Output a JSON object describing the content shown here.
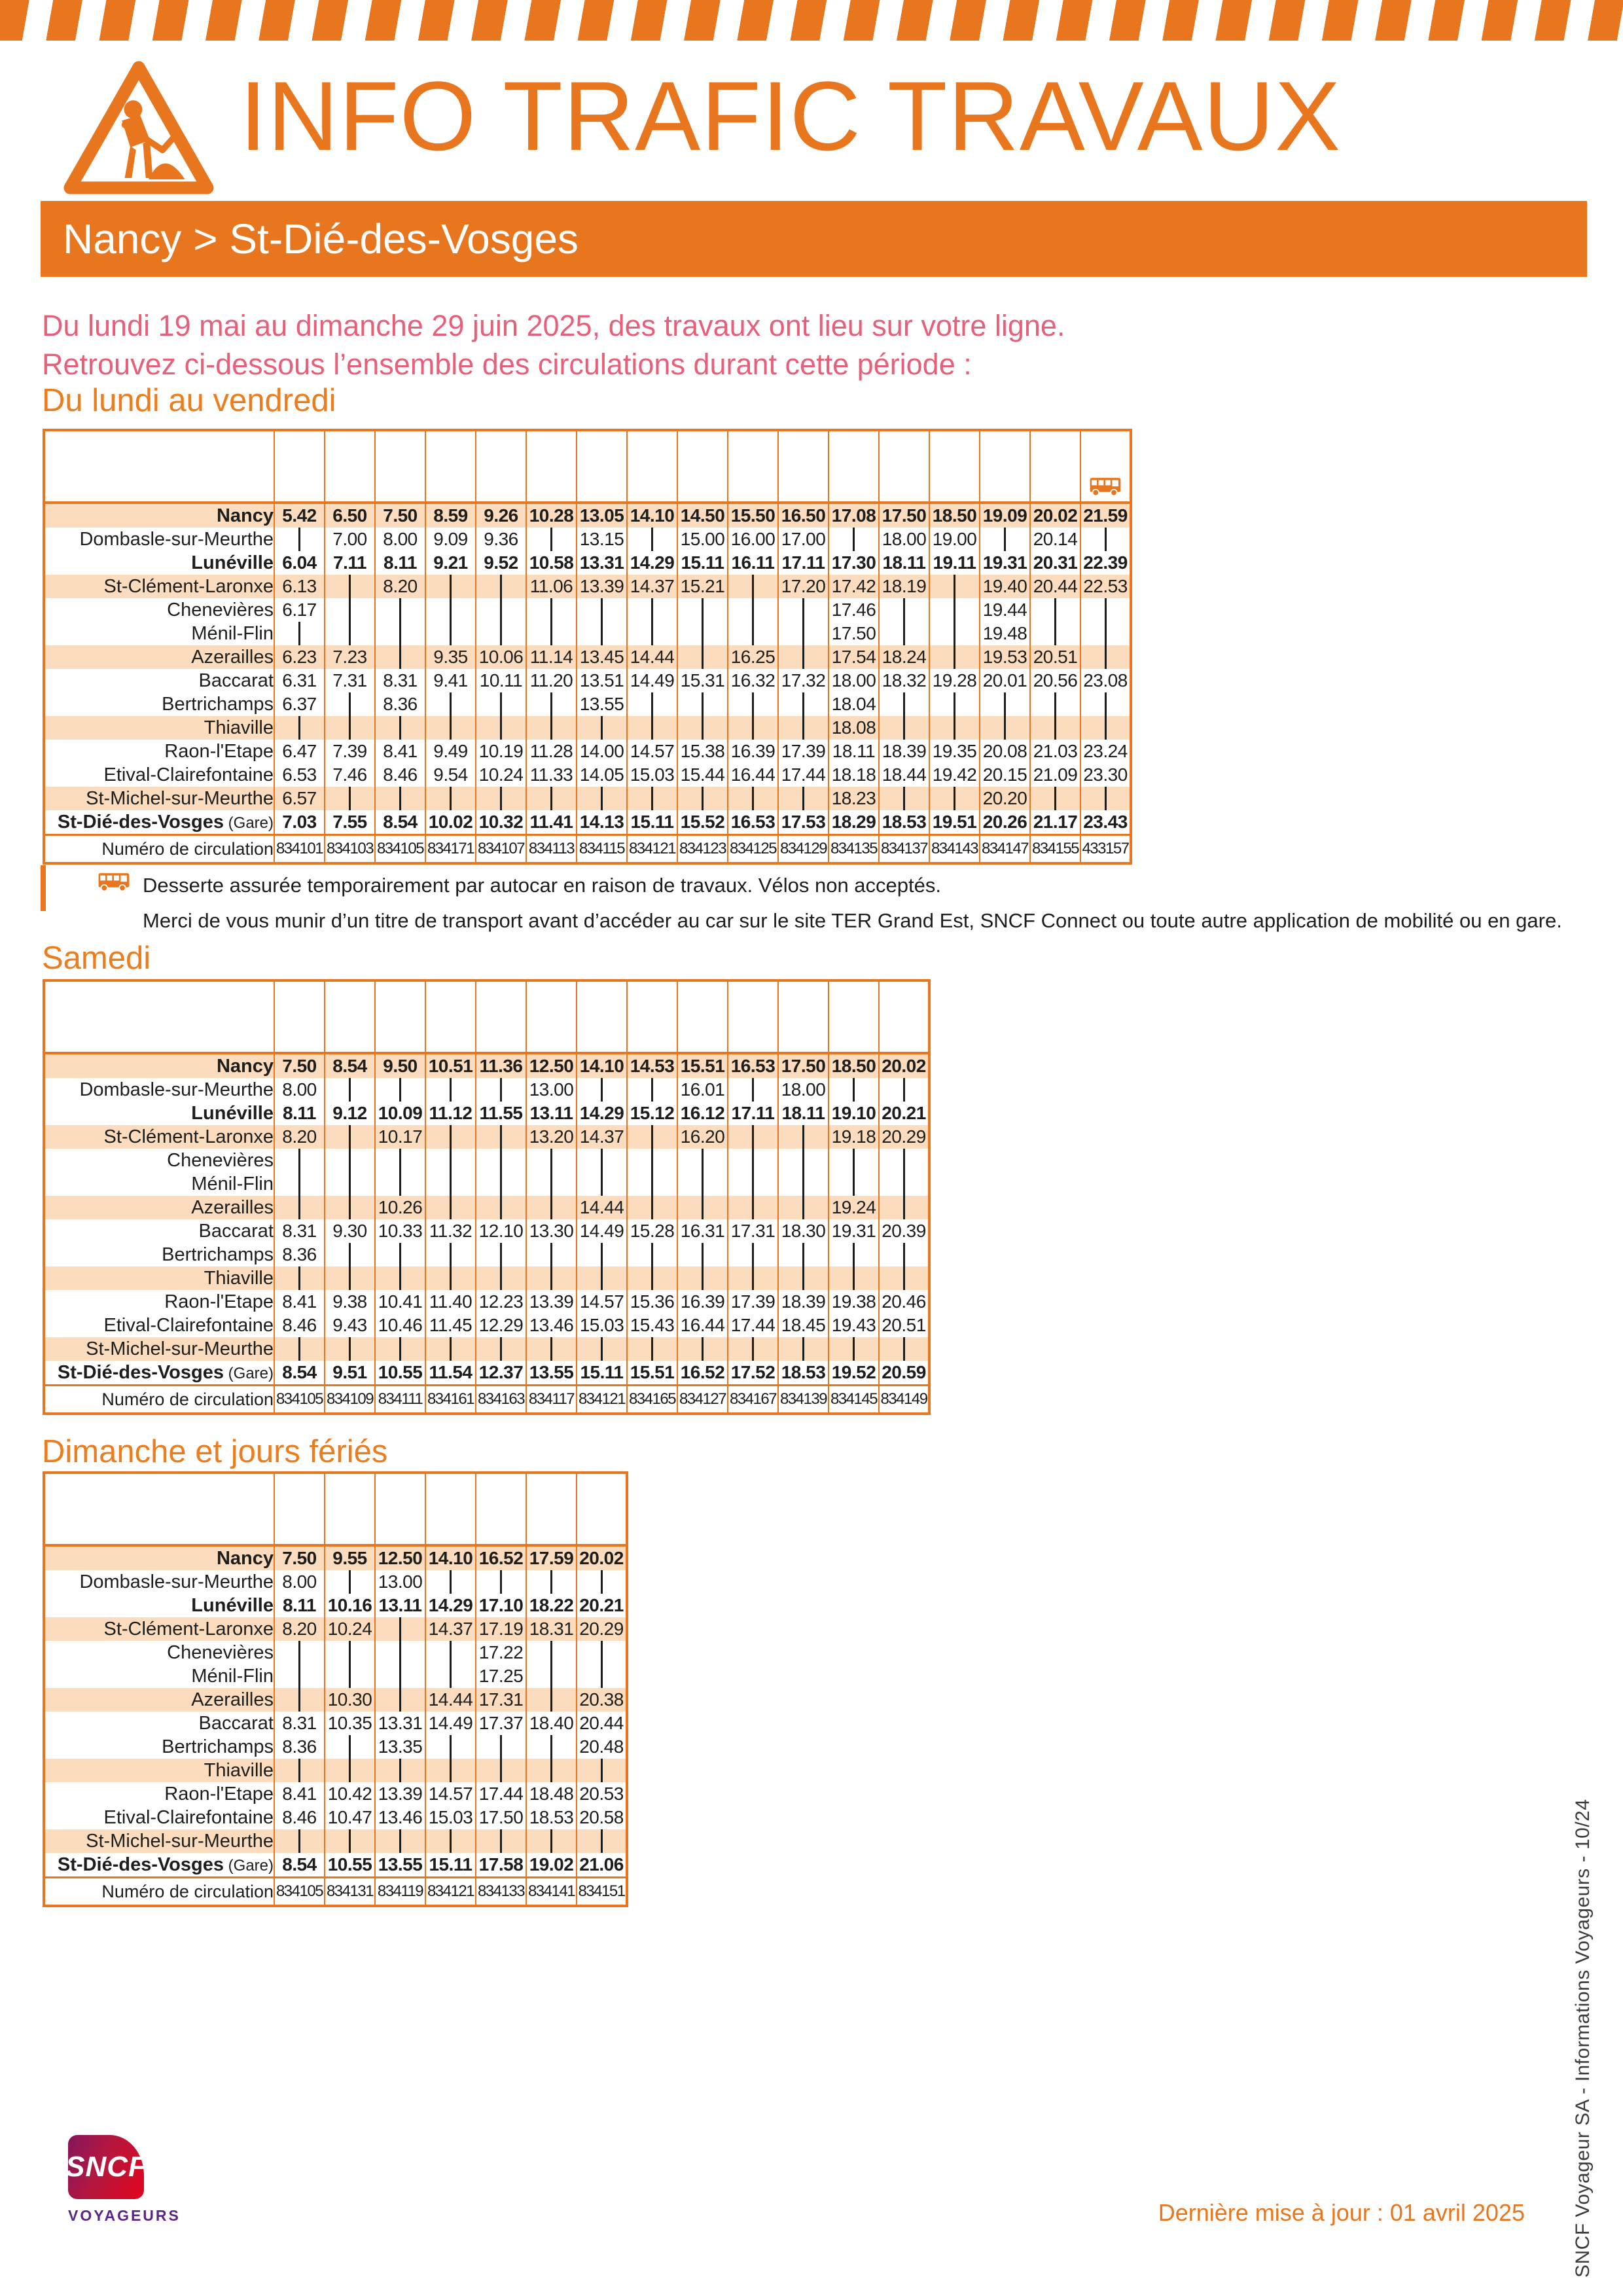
{
  "page": {
    "title": "INFO TRAFIC TRAVAUX",
    "route": "Nancy > St-Dié-des-Vosges",
    "intro_line1": "Du lundi 19 mai au dimanche 29 juin 2025, des travaux ont lieu sur votre ligne.",
    "intro_line2": "Retrouvez ci-dessous l’ensemble des circulations durant cette période :",
    "last_update": "Dernière mise à jour : 01 avril 2025",
    "side_note": "SNCF Voyageur SA - Informations Voyageurs - 10/24",
    "logo_brand": "SNCF",
    "logo_sub": "VOYAGEURS"
  },
  "colors": {
    "orange": "#E8761E",
    "row_fill": "#FBDCBF",
    "pink": "#E75F78",
    "ink": "#1D1D1B",
    "logo_purple": "#5C2483"
  },
  "legend": {
    "line1": "Desserte assurée temporairement par autocar en raison de travaux. Vélos non acceptés.",
    "line2": "Merci de vous munir d’un titre de transport avant d’accéder au car sur le site TER Grand Est, SNCF Connect ou toute autre application de mobilité ou en gare."
  },
  "circulation_label": "Numéro de circulation",
  "stations": [
    {
      "name": "Nancy",
      "bold": true,
      "shaded": true
    },
    {
      "name": "Dombasle-sur-Meurthe",
      "bold": false,
      "shaded": false
    },
    {
      "name": "Lunéville",
      "bold": true,
      "shaded": false
    },
    {
      "name": "St-Clément-Laronxe",
      "bold": false,
      "shaded": true
    },
    {
      "name": "Chenevières",
      "bold": false,
      "shaded": false
    },
    {
      "name": "Ménil-Flin",
      "bold": false,
      "shaded": false
    },
    {
      "name": "Azerailles",
      "bold": false,
      "shaded": true
    },
    {
      "name": "Baccarat",
      "bold": false,
      "shaded": false
    },
    {
      "name": "Bertrichamps",
      "bold": false,
      "shaded": false
    },
    {
      "name": "Thiaville",
      "bold": false,
      "shaded": true
    },
    {
      "name": "Raon-l'Etape",
      "bold": false,
      "shaded": false
    },
    {
      "name": "Etival-Clairefontaine",
      "bold": false,
      "shaded": false
    },
    {
      "name": "St-Michel-sur-Meurthe",
      "bold": false,
      "shaded": true
    },
    {
      "name": "St-Dié-des-Vosges",
      "suffix": "(Gare)",
      "bold": true,
      "shaded": false
    }
  ],
  "tables": [
    {
      "id": "weekday",
      "heading": "Du lundi au vendredi",
      "bus_cols": [
        16
      ],
      "rows": [
        [
          "5.42",
          "6.50",
          "7.50",
          "8.59",
          "9.26",
          "10.28",
          "13.05",
          "14.10",
          "14.50",
          "15.50",
          "16.50",
          "17.08",
          "17.50",
          "18.50",
          "19.09",
          "20.02",
          "21.59"
        ],
        [
          "|",
          "7.00",
          "8.00",
          "9.09",
          "9.36",
          "|",
          "13.15",
          "|",
          "15.00",
          "16.00",
          "17.00",
          "|",
          "18.00",
          "19.00",
          "|",
          "20.14",
          "|"
        ],
        [
          "6.04",
          "7.11",
          "8.11",
          "9.21",
          "9.52",
          "10.58",
          "13.31",
          "14.29",
          "15.11",
          "16.11",
          "17.11",
          "17.30",
          "18.11",
          "19.11",
          "19.31",
          "20.31",
          "22.39"
        ],
        [
          "6.13",
          "|",
          "8.20",
          "|",
          "|",
          "11.06",
          "13.39",
          "14.37",
          "15.21",
          "|",
          "17.20",
          "17.42",
          "18.19",
          "|",
          "19.40",
          "20.44",
          "22.53"
        ],
        [
          "6.17",
          "|",
          "|",
          "|",
          "|",
          "|",
          "|",
          "|",
          "|",
          "|",
          "|",
          "17.46",
          "|",
          "|",
          "19.44",
          "|",
          "|"
        ],
        [
          "|",
          "|",
          "|",
          "|",
          "|",
          "|",
          "|",
          "|",
          "|",
          "|",
          "|",
          "17.50",
          "|",
          "|",
          "19.48",
          "|",
          "|"
        ],
        [
          "6.23",
          "7.23",
          "|",
          "9.35",
          "10.06",
          "11.14",
          "13.45",
          "14.44",
          "|",
          "16.25",
          "|",
          "17.54",
          "18.24",
          "|",
          "19.53",
          "20.51",
          "|"
        ],
        [
          "6.31",
          "7.31",
          "8.31",
          "9.41",
          "10.11",
          "11.20",
          "13.51",
          "14.49",
          "15.31",
          "16.32",
          "17.32",
          "18.00",
          "18.32",
          "19.28",
          "20.01",
          "20.56",
          "23.08"
        ],
        [
          "6.37",
          "|",
          "8.36",
          "|",
          "|",
          "|",
          "13.55",
          "|",
          "|",
          "|",
          "|",
          "18.04",
          "|",
          "|",
          "|",
          "|",
          "|"
        ],
        [
          "|",
          "|",
          "|",
          "|",
          "|",
          "|",
          "|",
          "|",
          "|",
          "|",
          "|",
          "18.08",
          "|",
          "|",
          "|",
          "|",
          "|"
        ],
        [
          "6.47",
          "7.39",
          "8.41",
          "9.49",
          "10.19",
          "11.28",
          "14.00",
          "14.57",
          "15.38",
          "16.39",
          "17.39",
          "18.11",
          "18.39",
          "19.35",
          "20.08",
          "21.03",
          "23.24"
        ],
        [
          "6.53",
          "7.46",
          "8.46",
          "9.54",
          "10.24",
          "11.33",
          "14.05",
          "15.03",
          "15.44",
          "16.44",
          "17.44",
          "18.18",
          "18.44",
          "19.42",
          "20.15",
          "21.09",
          "23.30"
        ],
        [
          "6.57",
          "|",
          "|",
          "|",
          "|",
          "|",
          "|",
          "|",
          "|",
          "|",
          "|",
          "18.23",
          "|",
          "|",
          "20.20",
          "|",
          "|"
        ],
        [
          "7.03",
          "7.55",
          "8.54",
          "10.02",
          "10.32",
          "11.41",
          "14.13",
          "15.11",
          "15.52",
          "16.53",
          "17.53",
          "18.29",
          "18.53",
          "19.51",
          "20.26",
          "21.17",
          "23.43"
        ]
      ],
      "numbers": [
        "834101",
        "834103",
        "834105",
        "834171",
        "834107",
        "834113",
        "834115",
        "834121",
        "834123",
        "834125",
        "834129",
        "834135",
        "834137",
        "834143",
        "834147",
        "834155",
        "433157"
      ]
    },
    {
      "id": "saturday",
      "heading": "Samedi",
      "bus_cols": [],
      "rows": [
        [
          "7.50",
          "8.54",
          "9.50",
          "10.51",
          "11.36",
          "12.50",
          "14.10",
          "14.53",
          "15.51",
          "16.53",
          "17.50",
          "18.50",
          "20.02"
        ],
        [
          "8.00",
          "|",
          "|",
          "|",
          "|",
          "13.00",
          "|",
          "|",
          "16.01",
          "|",
          "18.00",
          "|",
          "|"
        ],
        [
          "8.11",
          "9.12",
          "10.09",
          "11.12",
          "11.55",
          "13.11",
          "14.29",
          "15.12",
          "16.12",
          "17.11",
          "18.11",
          "19.10",
          "20.21"
        ],
        [
          "8.20",
          "|",
          "10.17",
          "|",
          "|",
          "13.20",
          "14.37",
          "|",
          "16.20",
          "|",
          "|",
          "19.18",
          "20.29"
        ],
        [
          "|",
          "|",
          "|",
          "|",
          "|",
          "|",
          "|",
          "|",
          "|",
          "|",
          "|",
          "|",
          "|"
        ],
        [
          "|",
          "|",
          "|",
          "|",
          "|",
          "|",
          "|",
          "|",
          "|",
          "|",
          "|",
          "|",
          "|"
        ],
        [
          "|",
          "|",
          "10.26",
          "|",
          "|",
          "|",
          "14.44",
          "|",
          "|",
          "|",
          "|",
          "19.24",
          "|"
        ],
        [
          "8.31",
          "9.30",
          "10.33",
          "11.32",
          "12.10",
          "13.30",
          "14.49",
          "15.28",
          "16.31",
          "17.31",
          "18.30",
          "19.31",
          "20.39"
        ],
        [
          "8.36",
          "|",
          "|",
          "|",
          "|",
          "|",
          "|",
          "|",
          "|",
          "|",
          "|",
          "|",
          "|"
        ],
        [
          "|",
          "|",
          "|",
          "|",
          "|",
          "|",
          "|",
          "|",
          "|",
          "|",
          "|",
          "|",
          "|"
        ],
        [
          "8.41",
          "9.38",
          "10.41",
          "11.40",
          "12.23",
          "13.39",
          "14.57",
          "15.36",
          "16.39",
          "17.39",
          "18.39",
          "19.38",
          "20.46"
        ],
        [
          "8.46",
          "9.43",
          "10.46",
          "11.45",
          "12.29",
          "13.46",
          "15.03",
          "15.43",
          "16.44",
          "17.44",
          "18.45",
          "19.43",
          "20.51"
        ],
        [
          "|",
          "|",
          "|",
          "|",
          "|",
          "|",
          "|",
          "|",
          "|",
          "|",
          "|",
          "|",
          "|"
        ],
        [
          "8.54",
          "9.51",
          "10.55",
          "11.54",
          "12.37",
          "13.55",
          "15.11",
          "15.51",
          "16.52",
          "17.52",
          "18.53",
          "19.52",
          "20.59"
        ]
      ],
      "numbers": [
        "834105",
        "834109",
        "834111",
        "834161",
        "834163",
        "834117",
        "834121",
        "834165",
        "834127",
        "834167",
        "834139",
        "834145",
        "834149"
      ]
    },
    {
      "id": "sunday",
      "heading": "Dimanche et jours fériés",
      "bus_cols": [],
      "rows": [
        [
          "7.50",
          "9.55",
          "12.50",
          "14.10",
          "16.52",
          "17.59",
          "20.02"
        ],
        [
          "8.00",
          "|",
          "13.00",
          "|",
          "|",
          "|",
          "|"
        ],
        [
          "8.11",
          "10.16",
          "13.11",
          "14.29",
          "17.10",
          "18.22",
          "20.21"
        ],
        [
          "8.20",
          "10.24",
          "|",
          "14.37",
          "17.19",
          "18.31",
          "20.29"
        ],
        [
          "|",
          "|",
          "|",
          "|",
          "17.22",
          "|",
          "|"
        ],
        [
          "|",
          "|",
          "|",
          "|",
          "17.25",
          "|",
          "|"
        ],
        [
          "|",
          "10.30",
          "|",
          "14.44",
          "17.31",
          "|",
          "20.38"
        ],
        [
          "8.31",
          "10.35",
          "13.31",
          "14.49",
          "17.37",
          "18.40",
          "20.44"
        ],
        [
          "8.36",
          "|",
          "13.35",
          "|",
          "|",
          "|",
          "20.48"
        ],
        [
          "|",
          "|",
          "|",
          "|",
          "|",
          "|",
          "|"
        ],
        [
          "8.41",
          "10.42",
          "13.39",
          "14.57",
          "17.44",
          "18.48",
          "20.53"
        ],
        [
          "8.46",
          "10.47",
          "13.46",
          "15.03",
          "17.50",
          "18.53",
          "20.58"
        ],
        [
          "|",
          "|",
          "|",
          "|",
          "|",
          "|",
          "|"
        ],
        [
          "8.54",
          "10.55",
          "13.55",
          "15.11",
          "17.58",
          "19.02",
          "21.06"
        ]
      ],
      "numbers": [
        "834105",
        "834131",
        "834119",
        "834121",
        "834133",
        "834141",
        "834151"
      ]
    }
  ]
}
